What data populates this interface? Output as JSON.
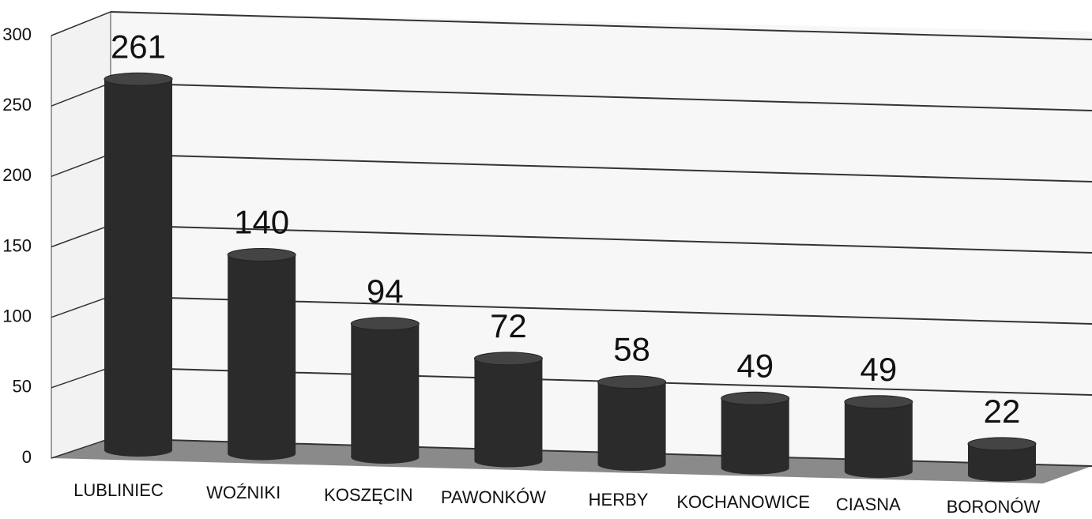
{
  "chart_data": {
    "type": "bar",
    "categories": [
      "LUBLINIEC",
      "WOŹNIKI",
      "KOSZĘCIN",
      "PAWONKÓW",
      "HERBY",
      "KOCHANOWICE",
      "CIASNA",
      "BORONÓW"
    ],
    "values": [
      261,
      140,
      94,
      72,
      58,
      49,
      49,
      22
    ],
    "color": "#2b2b2b",
    "ylim": [
      0,
      300
    ],
    "yticks": [
      0,
      50,
      100,
      150,
      200,
      250,
      300
    ],
    "grid": true
  }
}
